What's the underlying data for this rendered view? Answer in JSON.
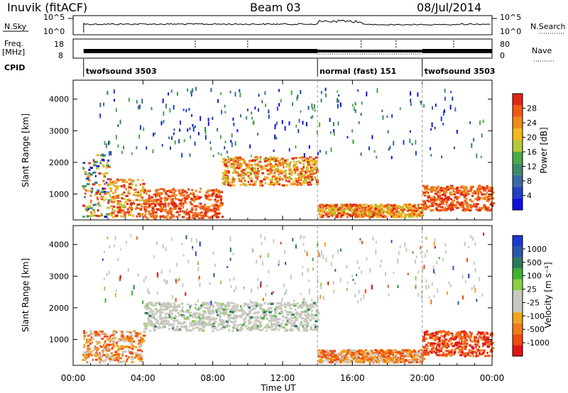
{
  "header": {
    "station": "Inuvik (fitACF)",
    "beam": "Beam 03",
    "date": "08/Jul/2014"
  },
  "status_panels": {
    "nsky_label": "N.Sky",
    "nsky_ticks": [
      "10^5",
      "10^0"
    ],
    "nsearch_label": "N.Search",
    "nsearch_ticks": [
      "10^5",
      "10^0"
    ],
    "freq_label": "Freq.",
    "freq_unit": "[MHz]",
    "freq_ticks": [
      "18",
      "8"
    ],
    "nave_label": "Nave",
    "nave_ticks": [
      "80",
      "0"
    ],
    "cpid_label": "CPID",
    "cpid_segments": [
      {
        "label": "twofsound 3503",
        "start": 0.6,
        "end": 14.0
      },
      {
        "label": "normal (fast) 151",
        "start": 14.0,
        "end": 20.0
      },
      {
        "label": "twofsound 3503",
        "start": 20.0,
        "end": 24.0
      }
    ]
  },
  "colors": {
    "power": [
      "#1010e0",
      "#2040c0",
      "#3a6aa0",
      "#3d8a68",
      "#4aa84a",
      "#b5c83a",
      "#f2b81e",
      "#f08a1a",
      "#f05a16",
      "#e02814"
    ],
    "velocity": [
      "#e01414",
      "#f04a14",
      "#f07a1a",
      "#f0a41e",
      "#c8c8c0",
      "#c8c8c0",
      "#8cd04a",
      "#40b030",
      "#2a7a5a",
      "#2a58a8",
      "#1a3ad0"
    ]
  },
  "chart_data": [
    {
      "type": "heatmap",
      "title": "Power",
      "xlabel": "",
      "ylabel": "Slant Range [km]",
      "xlim": [
        0,
        24
      ],
      "ylim": [
        180,
        4600
      ],
      "x_ticks": [
        "00:00",
        "04:00",
        "08:00",
        "12:00",
        "16:00",
        "20:00",
        "00:00"
      ],
      "y_ticks": [
        "1000",
        "2000",
        "3000",
        "4000"
      ],
      "colorbar": {
        "label": "Power [dB]",
        "range": [
          0,
          32
        ],
        "ticks": [
          "4",
          "8",
          "12",
          "16",
          "20",
          "24",
          "28"
        ]
      },
      "bands": [
        {
          "t0": 0.5,
          "t1": 2.0,
          "r0": 300,
          "r1": 2300,
          "level": "mixed"
        },
        {
          "t0": 2.0,
          "t1": 4.0,
          "r0": 300,
          "r1": 1500,
          "level": "high"
        },
        {
          "t0": 4.0,
          "t1": 8.5,
          "r0": 250,
          "r1": 1200,
          "level": "very high"
        },
        {
          "t0": 8.5,
          "t1": 14.0,
          "r0": 1300,
          "r1": 2200,
          "level": "high"
        },
        {
          "t0": 14.0,
          "t1": 20.0,
          "r0": 300,
          "r1": 700,
          "level": "high"
        },
        {
          "t0": 20.0,
          "t1": 24.0,
          "r0": 500,
          "r1": 1300,
          "level": "very high"
        }
      ]
    },
    {
      "type": "heatmap",
      "title": "Velocity",
      "xlabel": "Time UT",
      "ylabel": "Slant Range [km]",
      "xlim": [
        0,
        24
      ],
      "ylim": [
        180,
        4600
      ],
      "x_ticks": [
        "00:00",
        "04:00",
        "08:00",
        "12:00",
        "16:00",
        "20:00",
        "00:00"
      ],
      "y_ticks": [
        "1000",
        "2000",
        "3000",
        "4000"
      ],
      "colorbar": {
        "label": "Velocity [m s⁻¹]",
        "ticks": [
          "1000",
          "500",
          "100",
          "25",
          "-25",
          "-100",
          "-500",
          "-1000"
        ]
      },
      "bands": [
        {
          "t0": 0.5,
          "t1": 4.0,
          "r0": 300,
          "r1": 1300,
          "level": "negative"
        },
        {
          "t0": 4.0,
          "t1": 14.0,
          "r0": 1300,
          "r1": 2200,
          "level": "near zero"
        },
        {
          "t0": 14.0,
          "t1": 20.0,
          "r0": 300,
          "r1": 700,
          "level": "negative"
        },
        {
          "t0": 20.0,
          "t1": 24.0,
          "r0": 500,
          "r1": 1300,
          "level": "strong negative"
        }
      ]
    }
  ]
}
